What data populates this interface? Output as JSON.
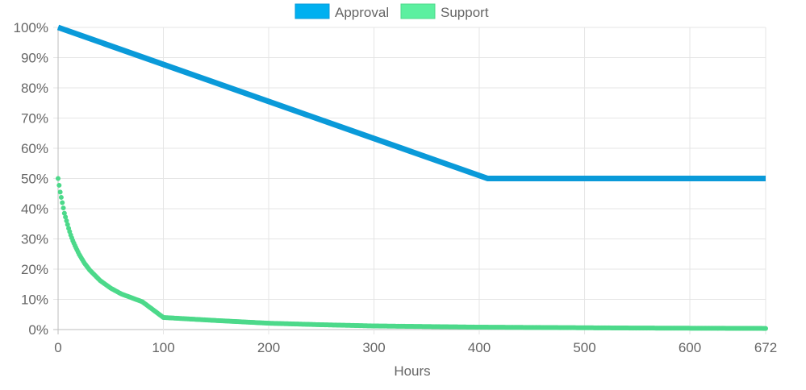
{
  "chart_data": {
    "type": "line",
    "x_axis": {
      "label": "Hours",
      "min": 0,
      "max": 672,
      "ticks": [
        0,
        100,
        200,
        300,
        400,
        500,
        600,
        672
      ],
      "tick_labels": [
        "0",
        "100",
        "200",
        "300",
        "400",
        "500",
        "600",
        "672"
      ]
    },
    "y_axis": {
      "min": 0,
      "max": 100,
      "ticks": [
        0,
        10,
        20,
        30,
        40,
        50,
        60,
        70,
        80,
        90,
        100
      ],
      "tick_labels": [
        "0%",
        "10%",
        "20%",
        "30%",
        "40%",
        "50%",
        "60%",
        "70%",
        "80%",
        "90%",
        "100%"
      ]
    },
    "grid": true,
    "legend_position": "top-center",
    "series": [
      {
        "name": "Approval",
        "color": "#0a9ad9",
        "legend_fill": "#00b0f0",
        "style": "thick-line",
        "x": [
          0,
          408,
          672
        ],
        "y": [
          100,
          50,
          50
        ]
      },
      {
        "name": "Support",
        "color": "#4cd98a",
        "legend_fill": "#5cf0a0",
        "style": "dots",
        "x": [
          0,
          2,
          4,
          6,
          8,
          10,
          12,
          14,
          16,
          20,
          25,
          30,
          40,
          50,
          60,
          80,
          100,
          125,
          150,
          200,
          250,
          300,
          350,
          400,
          450,
          500,
          550,
          600,
          650,
          672
        ],
        "y": [
          50,
          45.5,
          42,
          38.5,
          36,
          33.5,
          31.3,
          29.4,
          27.8,
          24.9,
          22,
          19.7,
          16.2,
          13.7,
          11.8,
          9.2,
          4,
          3.5,
          3,
          2.1,
          1.6,
          1.2,
          1,
          0.8,
          0.7,
          0.6,
          0.5,
          0.45,
          0.4,
          0.38
        ]
      }
    ]
  }
}
